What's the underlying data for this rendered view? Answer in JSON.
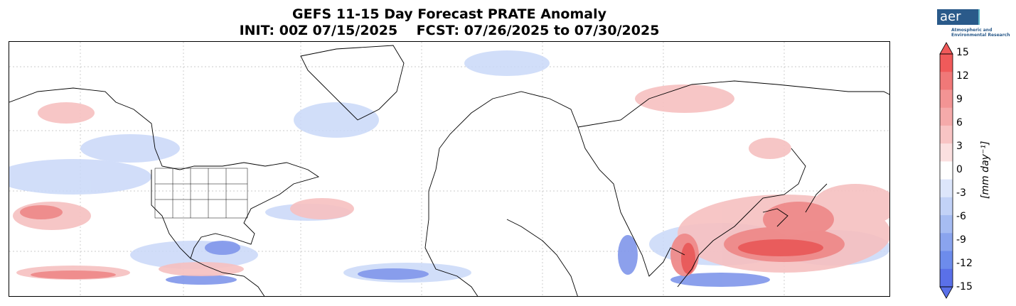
{
  "title": {
    "line1": "GEFS 11-15 Day Forecast PRATE Anomaly",
    "line2": "INIT: 00Z 07/15/2025    FCST: 07/26/2025 to 07/30/2025"
  },
  "logo": {
    "text": "aer",
    "sub1": "Atmospheric and",
    "sub2": "Environmental Research"
  },
  "colorbar": {
    "title": "[mm day⁻¹]",
    "ticks": [
      "15",
      "12",
      "9",
      "6",
      "3",
      "0",
      "-3",
      "-6",
      "-9",
      "-12",
      "-15"
    ],
    "colors_top_to_bottom": [
      "#f05a5a",
      "#f07878",
      "#f39494",
      "#f5aaaa",
      "#f8c4c4",
      "#fbe0e0",
      "#ffffff",
      "#dde6fb",
      "#c2d2f7",
      "#a6bcf2",
      "#8aa4ee",
      "#6d8cec",
      "#5a70e8"
    ]
  }
}
